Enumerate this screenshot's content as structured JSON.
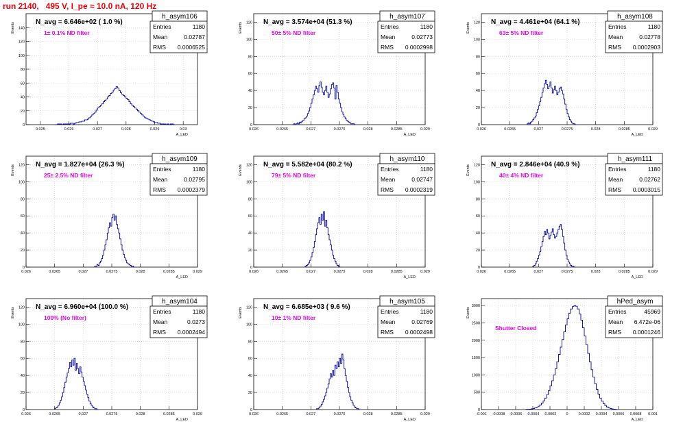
{
  "page_title": "run 2140,   495 V, I_pe ≈ 10.0 nA, 120 Hz",
  "colors": {
    "title": "#e8000b",
    "note": "#e600e6",
    "hist": "#000099",
    "grid": "#c8c8c8"
  },
  "stats_labels": {
    "entries": "Entries",
    "mean": "Mean",
    "rms": "RMS"
  },
  "chart_data": [
    {
      "type": "bar",
      "name": "h_asym106",
      "nline": "N_avg = 6.646e+02 ( 1.0 %)",
      "note": "1± 0.1% ND filter",
      "ylabel": "Events",
      "xlabel": "A_LED",
      "entries": "1180",
      "mean": "0.02787",
      "rms": "0.0006525",
      "xlim": [
        0.0245,
        0.0305
      ],
      "ylim": [
        0,
        160
      ],
      "xticks": [
        0.025,
        0.026,
        0.027,
        0.028,
        0.029,
        0.03
      ],
      "xtick_labels": [
        "0.025",
        "0.026",
        "0.027",
        "0.028",
        "0.029",
        "0.03"
      ],
      "yticks": [
        0,
        20,
        40,
        60,
        80,
        100,
        120,
        140
      ],
      "ytick_labels": [
        "0",
        "20",
        "40",
        "60",
        "80",
        "100",
        "120",
        "140"
      ],
      "bins": {
        "x0": 0.0255,
        "width": 5e-05,
        "values": [
          0,
          0,
          1,
          1,
          1,
          0,
          1,
          1,
          1,
          1,
          1,
          2,
          2,
          1,
          2,
          3,
          3,
          4,
          4,
          5,
          5,
          7,
          7,
          8,
          10,
          12,
          14,
          16,
          18,
          21,
          24,
          26,
          28,
          30,
          33,
          35,
          37,
          40,
          42,
          45,
          47,
          50,
          52,
          55,
          53,
          49,
          46,
          44,
          42,
          40,
          38,
          36,
          33,
          30,
          28,
          26,
          24,
          22,
          20,
          18,
          16,
          14,
          12,
          10,
          9,
          8,
          7,
          6,
          5,
          4,
          3,
          3,
          2,
          2,
          1,
          1,
          1,
          1,
          0,
          1,
          0,
          1,
          1,
          0
        ]
      }
    },
    {
      "type": "bar",
      "name": "h_asym107",
      "nline": "N_avg = 3.574e+04 (51.3 %)",
      "note": "50± 5% ND filter",
      "ylabel": "Events",
      "xlabel": "A_LED",
      "entries": "1180",
      "mean": "0.02773",
      "rms": "0.0002998",
      "xlim": [
        0.026,
        0.029
      ],
      "ylim": [
        0,
        130
      ],
      "xticks": [
        0.026,
        0.0265,
        0.027,
        0.0275,
        0.028,
        0.0285,
        0.029
      ],
      "xtick_labels": [
        "0.026",
        "0.0265",
        "0.027",
        "0.0275",
        "0.028",
        "0.0285",
        "0.029"
      ],
      "yticks": [
        0,
        20,
        40,
        60,
        80,
        100,
        120
      ],
      "ytick_labels": [
        "0",
        "20",
        "40",
        "60",
        "80",
        "100",
        "120"
      ],
      "bins": {
        "x0": 0.0267,
        "width": 2e-05,
        "values": [
          1,
          0,
          1,
          2,
          1,
          3,
          2,
          4,
          5,
          7,
          8,
          10,
          13,
          16,
          20,
          25,
          30,
          35,
          40,
          45,
          42,
          38,
          46,
          50,
          44,
          38,
          35,
          40,
          45,
          38,
          32,
          36,
          42,
          47,
          49,
          43,
          30,
          46,
          38,
          30,
          25,
          20,
          15,
          12,
          9,
          7,
          5,
          4,
          3,
          2,
          1,
          1,
          1,
          0
        ]
      }
    },
    {
      "type": "bar",
      "name": "h_asym108",
      "nline": "N_avg = 4.461e+04 (64.1 %)",
      "note": "63± 5% ND filter",
      "ylabel": "Events",
      "xlabel": "A_LED",
      "entries": "1180",
      "mean": "0.02778",
      "rms": "0.0002903",
      "xlim": [
        0.026,
        0.029
      ],
      "ylim": [
        0,
        130
      ],
      "xticks": [
        0.026,
        0.0265,
        0.027,
        0.0275,
        0.028,
        0.0285,
        0.029
      ],
      "xtick_labels": [
        "0.026",
        "0.0265",
        "0.027",
        "0.0275",
        "0.028",
        "0.0285",
        "0.029"
      ],
      "yticks": [
        0,
        20,
        40,
        60,
        80,
        100,
        120
      ],
      "ytick_labels": [
        "0",
        "20",
        "40",
        "60",
        "80",
        "100",
        "120"
      ],
      "bins": {
        "x0": 0.0268,
        "width": 2e-05,
        "values": [
          1,
          2,
          1,
          3,
          4,
          6,
          8,
          10,
          14,
          18,
          22,
          27,
          32,
          38,
          43,
          48,
          52,
          47,
          42,
          45,
          50,
          43,
          37,
          41,
          45,
          40,
          35,
          38,
          42,
          44,
          40,
          36,
          30,
          24,
          18,
          13,
          9,
          6,
          4,
          2,
          1,
          1,
          0
        ]
      }
    },
    {
      "type": "bar",
      "name": "h_asym109",
      "nline": "N_avg = 1.827e+04 (26.3 %)",
      "note": "25± 2.5% ND filter",
      "ylabel": "Events",
      "xlabel": "A_LED",
      "entries": "1180",
      "mean": "0.02795",
      "rms": "0.0002379",
      "xlim": [
        0.026,
        0.029
      ],
      "ylim": [
        0,
        130
      ],
      "xticks": [
        0.026,
        0.0265,
        0.027,
        0.0275,
        0.028,
        0.0285,
        0.029
      ],
      "xtick_labels": [
        "0.026",
        "0.0265",
        "0.027",
        "0.0275",
        "0.028",
        "0.0285",
        "0.029"
      ],
      "yticks": [
        0,
        20,
        40,
        60,
        80,
        100,
        120
      ],
      "ytick_labels": [
        "0",
        "20",
        "40",
        "60",
        "80",
        "100",
        "120"
      ],
      "bins": {
        "x0": 0.0272,
        "width": 2e-05,
        "values": [
          1,
          1,
          3,
          2,
          5,
          7,
          10,
          14,
          20,
          26,
          32,
          40,
          46,
          52,
          48,
          58,
          62,
          55,
          60,
          50,
          45,
          40,
          33,
          26,
          20,
          15,
          11,
          8,
          5,
          4,
          3,
          2,
          1,
          1,
          0
        ]
      }
    },
    {
      "type": "bar",
      "name": "h_asym110",
      "nline": "N_avg = 5.582e+04 (80.2 %)",
      "note": "79± 5% ND filter",
      "ylabel": "Events",
      "xlabel": "A_LED",
      "entries": "1180",
      "mean": "0.02747",
      "rms": "0.0002319",
      "xlim": [
        0.026,
        0.029
      ],
      "ylim": [
        0,
        130
      ],
      "xticks": [
        0.026,
        0.0265,
        0.027,
        0.0275,
        0.028,
        0.0285,
        0.029
      ],
      "xtick_labels": [
        "0.026",
        "0.0265",
        "0.027",
        "0.0275",
        "0.028",
        "0.0285",
        "0.029"
      ],
      "yticks": [
        0,
        20,
        40,
        60,
        80,
        100,
        120
      ],
      "ytick_labels": [
        "0",
        "20",
        "40",
        "60",
        "80",
        "100",
        "120"
      ],
      "bins": {
        "x0": 0.0269,
        "width": 2e-05,
        "values": [
          1,
          2,
          3,
          5,
          8,
          12,
          17,
          23,
          30,
          38,
          45,
          52,
          58,
          50,
          62,
          55,
          65,
          48,
          55,
          46,
          38,
          32,
          26,
          20,
          14,
          10,
          7,
          4,
          2,
          1,
          0
        ]
      }
    },
    {
      "type": "bar",
      "name": "h_asym111",
      "nline": "N_avg = 2.846e+04 (40.9 %)",
      "note": "40± 4% ND filter",
      "ylabel": "Events",
      "xlabel": "A_LED",
      "entries": "1180",
      "mean": "0.02762",
      "rms": "0.0003015",
      "xlim": [
        0.026,
        0.029
      ],
      "ylim": [
        0,
        130
      ],
      "xticks": [
        0.026,
        0.0265,
        0.027,
        0.0275,
        0.028,
        0.0285,
        0.029
      ],
      "xtick_labels": [
        "0.026",
        "0.0265",
        "0.027",
        "0.0275",
        "0.028",
        "0.0285",
        "0.029"
      ],
      "yticks": [
        0,
        20,
        40,
        60,
        80,
        100,
        120
      ],
      "ytick_labels": [
        "0",
        "20",
        "40",
        "60",
        "80",
        "100",
        "120"
      ],
      "bins": {
        "x0": 0.0269,
        "width": 2e-05,
        "values": [
          1,
          2,
          4,
          7,
          10,
          14,
          18,
          24,
          30,
          36,
          42,
          38,
          44,
          40,
          33,
          37,
          41,
          45,
          38,
          34,
          36,
          40,
          44,
          48,
          50,
          44,
          36,
          28,
          20,
          14,
          9,
          6,
          4,
          2,
          1,
          1,
          0
        ]
      }
    },
    {
      "type": "bar",
      "name": "h_asym104",
      "nline": "N_avg = 6.960e+04 (100.0 %)",
      "note": "100% (No filter)",
      "ylabel": "Events",
      "xlabel": "A_LED",
      "entries": "1180",
      "mean": "0.0273",
      "rms": "0.0002494",
      "xlim": [
        0.026,
        0.029
      ],
      "ylim": [
        0,
        130
      ],
      "xticks": [
        0.026,
        0.0265,
        0.027,
        0.0275,
        0.028,
        0.0285,
        0.029
      ],
      "xtick_labels": [
        "0.026",
        "0.0265",
        "0.027",
        "0.0275",
        "0.028",
        "0.0285",
        "0.029"
      ],
      "yticks": [
        0,
        20,
        40,
        60,
        80,
        100,
        120
      ],
      "ytick_labels": [
        "0",
        "20",
        "40",
        "60",
        "80",
        "100",
        "120"
      ],
      "bins": {
        "x0": 0.0265,
        "width": 2e-05,
        "values": [
          1,
          2,
          3,
          5,
          8,
          11,
          15,
          20,
          26,
          32,
          38,
          43,
          48,
          55,
          50,
          58,
          52,
          60,
          46,
          54,
          48,
          42,
          50,
          44,
          38,
          33,
          28,
          23,
          18,
          14,
          10,
          7,
          5,
          3,
          2,
          1,
          1,
          0
        ]
      }
    },
    {
      "type": "bar",
      "name": "h_asym105",
      "nline": "N_avg = 6.685e+03 ( 9.6 %)",
      "note": "10± 1% ND filter",
      "ylabel": "Events",
      "xlabel": "A_LED",
      "entries": "1180",
      "mean": "0.02769",
      "rms": "0.0002498",
      "xlim": [
        0.026,
        0.029
      ],
      "ylim": [
        0,
        130
      ],
      "xticks": [
        0.026,
        0.0265,
        0.027,
        0.0275,
        0.028,
        0.0285,
        0.029
      ],
      "xtick_labels": [
        "0.026",
        "0.0265",
        "0.027",
        "0.0275",
        "0.028",
        "0.0285",
        "0.029"
      ],
      "yticks": [
        0,
        20,
        40,
        60,
        80,
        100,
        120
      ],
      "ytick_labels": [
        "0",
        "20",
        "40",
        "60",
        "80",
        "100",
        "120"
      ],
      "bins": {
        "x0": 0.0271,
        "width": 2e-05,
        "values": [
          1,
          1,
          2,
          4,
          6,
          9,
          12,
          16,
          20,
          25,
          30,
          36,
          42,
          38,
          46,
          40,
          52,
          48,
          56,
          50,
          60,
          54,
          65,
          58,
          48,
          40,
          33,
          26,
          20,
          15,
          11,
          8,
          5,
          3,
          2,
          1,
          1,
          0
        ]
      }
    },
    {
      "type": "bar",
      "name": "hPed_asym",
      "nline": "",
      "note": "Shutter Closed",
      "ylabel": "Events",
      "xlabel": "A_LED",
      "entries": "45969",
      "mean": "6.472e-06",
      "rms": "0.0001246",
      "xlim": [
        -0.001,
        0.001
      ],
      "ylim": [
        0,
        3200
      ],
      "xticks": [
        -0.001,
        -0.0008,
        -0.0006,
        -0.0004,
        -0.0002,
        0,
        0.0002,
        0.0004,
        0.0006,
        0.0008,
        0.001
      ],
      "xtick_labels": [
        "-0.001",
        "-0.0008",
        "-0.0006",
        "-0.0004",
        "-0.0002",
        "0",
        "0.0002",
        "0.0004",
        "0.0006",
        "0.0008",
        "0.001"
      ],
      "yticks": [
        0,
        500,
        1000,
        1500,
        2000,
        2500,
        3000
      ],
      "ytick_labels": [
        "0",
        "500",
        "1000",
        "1500",
        "2000",
        "2500",
        "3000"
      ],
      "bins": {
        "x0": -0.00048,
        "width": 2e-05,
        "values": [
          5,
          8,
          12,
          20,
          30,
          45,
          65,
          95,
          135,
          185,
          250,
          330,
          430,
          545,
          680,
          830,
          1000,
          1180,
          1380,
          1590,
          1800,
          2020,
          2240,
          2440,
          2620,
          2780,
          2900,
          2970,
          3000,
          2980,
          2900,
          2760,
          2580,
          2360,
          2120,
          1870,
          1620,
          1380,
          1150,
          940,
          750,
          585,
          445,
          330,
          240,
          170,
          115,
          75,
          48,
          30,
          18,
          10,
          5
        ]
      }
    }
  ]
}
